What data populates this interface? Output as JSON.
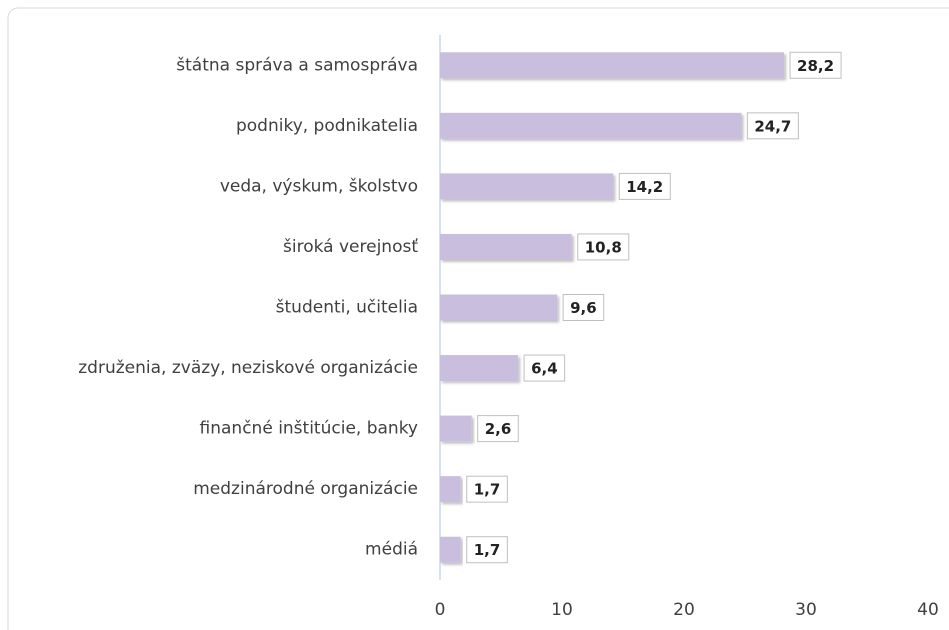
{
  "chart_data": {
    "type": "bar",
    "orientation": "horizontal",
    "categories": [
      "štátna správa a samospráva",
      "podniky, podnikatelia",
      "veda, výskum, školstvo",
      "široká verejnosť",
      "študenti, učitelia",
      "združenia, zväzy, neziskové organizácie",
      "finančné inštitúcie, banky",
      "medzinárodné organizácie",
      "médiá"
    ],
    "values": [
      28.2,
      24.7,
      14.2,
      10.8,
      9.6,
      6.4,
      2.6,
      1.7,
      1.7
    ],
    "value_labels": [
      "28,2",
      "24,7",
      "14,2",
      "10,8",
      "9,6",
      "6,4",
      "2,6",
      "1,7",
      "1,7"
    ],
    "color": "#c9bedd",
    "xlim": [
      0,
      40
    ],
    "xticks": [
      0,
      10,
      20,
      30,
      40
    ],
    "grid": false
  }
}
